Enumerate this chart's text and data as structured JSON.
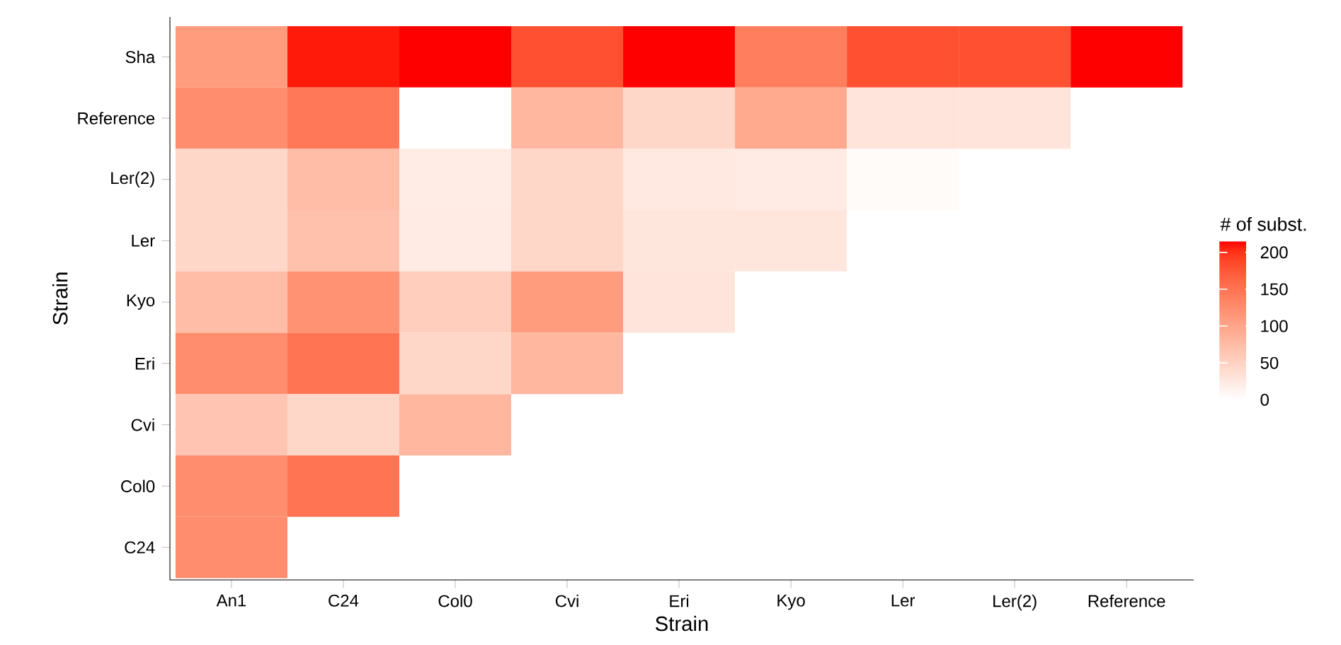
{
  "chart_data": {
    "type": "heatmap",
    "xlabel": "Strain",
    "ylabel": "Strain",
    "clabel": "# of subst.",
    "categories": [
      "An1",
      "C24",
      "Col0",
      "Cvi",
      "Eri",
      "Kyo",
      "Ler",
      "Ler(2)",
      "Reference"
    ],
    "y_categories": [
      "Sha",
      "Reference",
      "Ler(2)",
      "Ler",
      "Kyo",
      "Eri",
      "Cvi",
      "Col0",
      "C24"
    ],
    "cells": [
      [
        110,
        210,
        215,
        180,
        215,
        140,
        180,
        180,
        215
      ],
      [
        125,
        145,
        0,
        80,
        45,
        95,
        30,
        30,
        null
      ],
      [
        45,
        75,
        22,
        45,
        25,
        23,
        5,
        null,
        null
      ],
      [
        45,
        70,
        23,
        45,
        28,
        28,
        null,
        null,
        null
      ],
      [
        75,
        120,
        55,
        110,
        30,
        null,
        null,
        null,
        null
      ],
      [
        125,
        150,
        45,
        80,
        null,
        null,
        null,
        null,
        null
      ],
      [
        65,
        45,
        80,
        null,
        null,
        null,
        null,
        null,
        null
      ],
      [
        125,
        150,
        null,
        null,
        null,
        null,
        null,
        null,
        null
      ],
      [
        125,
        null,
        null,
        null,
        null,
        null,
        null,
        null,
        null
      ]
    ],
    "clim": [
      0,
      215
    ],
    "cticks": [
      0,
      50,
      100,
      150,
      200
    ]
  }
}
